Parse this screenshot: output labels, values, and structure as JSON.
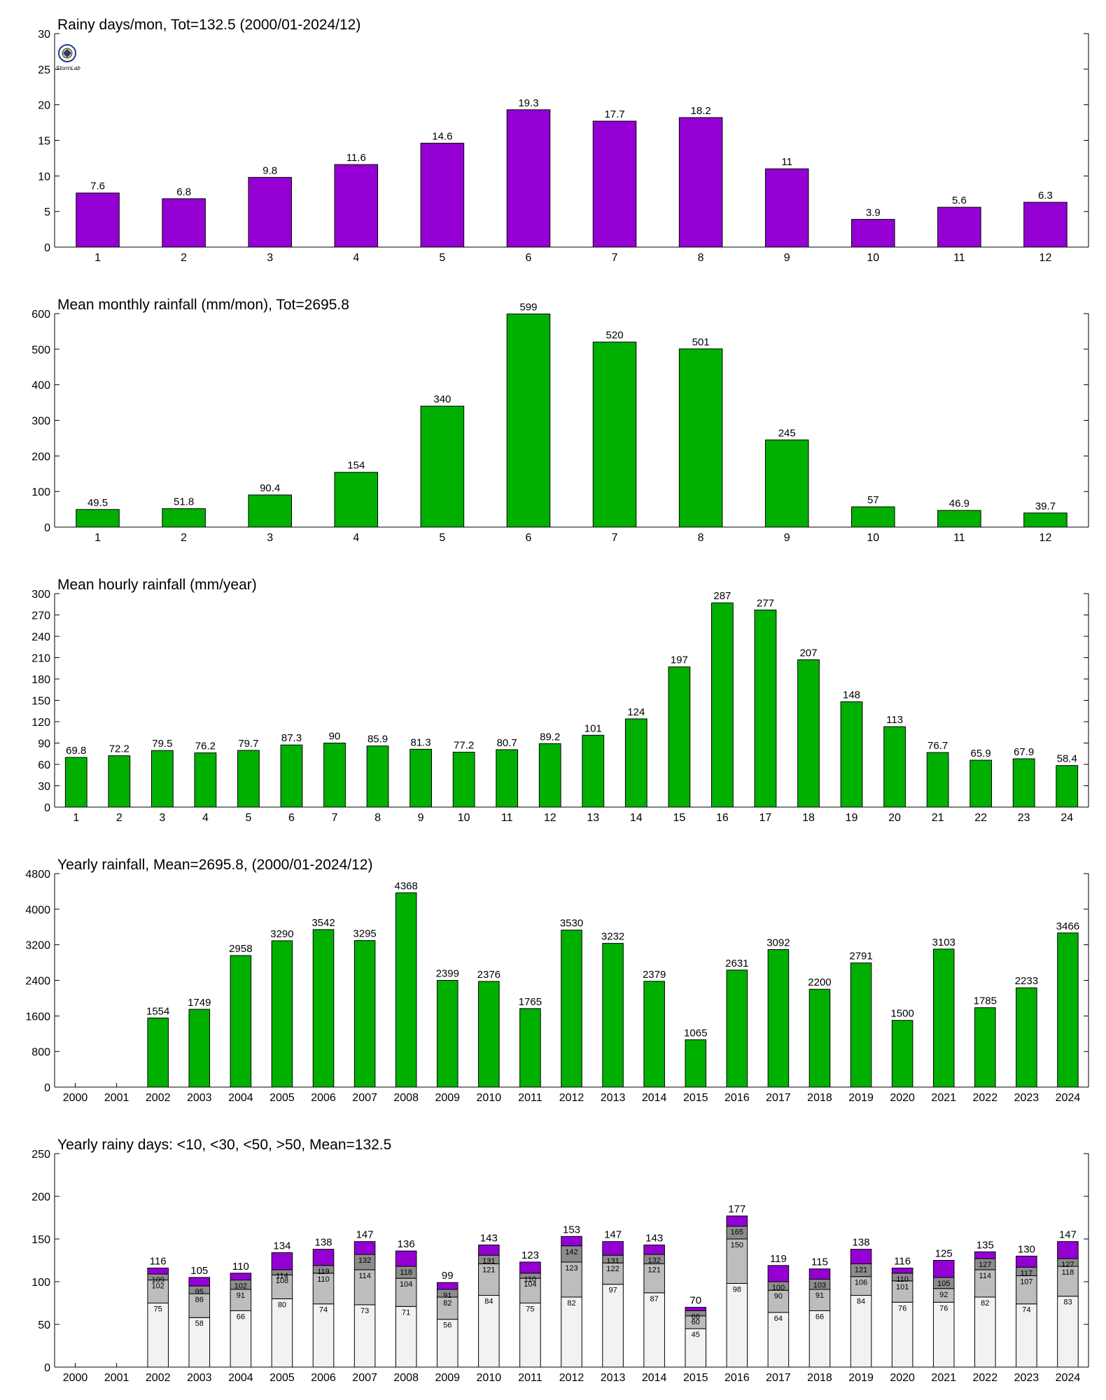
{
  "colors": {
    "purple": "#9400d3",
    "green": "#00b000",
    "seg_lt10": "#f2f2f2",
    "seg_lt30": "#bdbdbd",
    "seg_lt50": "#8c8c8c",
    "seg_gt50": "#9400d3"
  },
  "logo": {
    "icon": "weather-lab-logo-icon",
    "text": "StormLab"
  },
  "chart_data": [
    {
      "id": "rainy-days-monthly",
      "type": "bar",
      "title": "Rainy days/mon, Tot=132.5 (2000/01-2024/12)",
      "categories": [
        "1",
        "2",
        "3",
        "4",
        "5",
        "6",
        "7",
        "8",
        "9",
        "10",
        "11",
        "12"
      ],
      "values": [
        7.6,
        6.8,
        9.8,
        11.6,
        14.6,
        19.3,
        17.7,
        18.2,
        11,
        3.9,
        5.6,
        6.3
      ],
      "value_labels": [
        "7.6",
        "6.8",
        "9.8",
        "11.6",
        "14.6",
        "19.3",
        "17.7",
        "18.2",
        "11",
        "3.9",
        "5.6",
        "6.3"
      ],
      "ylim": [
        0,
        30
      ],
      "yticks": [
        0,
        5,
        10,
        15,
        20,
        25,
        30
      ],
      "color": "purple"
    },
    {
      "id": "mean-monthly-rainfall",
      "type": "bar",
      "title": "Mean monthly rainfall (mm/mon), Tot=2695.8",
      "categories": [
        "1",
        "2",
        "3",
        "4",
        "5",
        "6",
        "7",
        "8",
        "9",
        "10",
        "11",
        "12"
      ],
      "values": [
        49.5,
        51.8,
        90.4,
        154,
        340,
        599,
        520,
        501,
        245,
        57,
        46.9,
        39.7
      ],
      "value_labels": [
        "49.5",
        "51.8",
        "90.4",
        "154",
        "340",
        "599",
        "520",
        "501",
        "245",
        "57",
        "46.9",
        "39.7"
      ],
      "ylim": [
        0,
        600
      ],
      "yticks": [
        0,
        100,
        200,
        300,
        400,
        500,
        600
      ],
      "color": "green"
    },
    {
      "id": "mean-hourly-rainfall",
      "type": "bar",
      "title": "Mean hourly rainfall (mm/year)",
      "categories": [
        "1",
        "2",
        "3",
        "4",
        "5",
        "6",
        "7",
        "8",
        "9",
        "10",
        "11",
        "12",
        "13",
        "14",
        "15",
        "16",
        "17",
        "18",
        "19",
        "20",
        "21",
        "22",
        "23",
        "24"
      ],
      "values": [
        69.8,
        72.2,
        79.5,
        76.2,
        79.7,
        87.3,
        90,
        85.9,
        81.3,
        77.2,
        80.7,
        89.2,
        101,
        124,
        197,
        287,
        277,
        207,
        148,
        113,
        76.7,
        65.9,
        67.9,
        58.4
      ],
      "value_labels": [
        "69.8",
        "72.2",
        "79.5",
        "76.2",
        "79.7",
        "87.3",
        "90",
        "85.9",
        "81.3",
        "77.2",
        "80.7",
        "89.2",
        "101",
        "124",
        "197",
        "287",
        "277",
        "207",
        "148",
        "113",
        "76.7",
        "65.9",
        "67.9",
        "58.4"
      ],
      "ylim": [
        0,
        300
      ],
      "yticks": [
        0,
        30,
        60,
        90,
        120,
        150,
        180,
        210,
        240,
        270,
        300
      ],
      "color": "green"
    },
    {
      "id": "yearly-rainfall",
      "type": "bar",
      "title": "Yearly rainfall, Mean=2695.8, (2000/01-2024/12)",
      "categories": [
        "2000",
        "2001",
        "2002",
        "2003",
        "2004",
        "2005",
        "2006",
        "2007",
        "2008",
        "2009",
        "2010",
        "2011",
        "2012",
        "2013",
        "2014",
        "2015",
        "2016",
        "2017",
        "2018",
        "2019",
        "2020",
        "2021",
        "2022",
        "2023",
        "2024"
      ],
      "values": [
        null,
        null,
        1554,
        1749,
        2958,
        3290,
        3542,
        3295,
        4368,
        2399,
        2376,
        1765,
        3530,
        3232,
        2379,
        1065,
        2631,
        3092,
        2200,
        2791,
        1500,
        3103,
        1785,
        2233,
        3466
      ],
      "value_labels": [
        "",
        "",
        "1554",
        "1749",
        "2958",
        "3290",
        "3542",
        "3295",
        "4368",
        "2399",
        "2376",
        "1765",
        "3530",
        "3232",
        "2379",
        "1065",
        "2631",
        "3092",
        "2200",
        "2791",
        "1500",
        "3103",
        "1785",
        "2233",
        "3466"
      ],
      "ylim": [
        0,
        4800
      ],
      "yticks": [
        0,
        800,
        1600,
        2400,
        3200,
        4000,
        4800
      ],
      "color": "green"
    },
    {
      "id": "yearly-rainy-days",
      "type": "bar",
      "stacked": true,
      "title": "Yearly rainy days: <10, <30, <50, >50, Mean=132.5",
      "categories": [
        "2000",
        "2001",
        "2002",
        "2003",
        "2004",
        "2005",
        "2006",
        "2007",
        "2008",
        "2009",
        "2010",
        "2011",
        "2012",
        "2013",
        "2014",
        "2015",
        "2016",
        "2017",
        "2018",
        "2019",
        "2020",
        "2021",
        "2022",
        "2023",
        "2024"
      ],
      "cumulative": {
        "lt10": [
          null,
          null,
          75,
          58,
          66,
          80,
          74,
          73,
          71,
          56,
          84,
          75,
          82,
          97,
          87,
          45,
          98,
          64,
          66,
          84,
          76,
          76,
          82,
          74,
          83
        ],
        "lt30": [
          null,
          null,
          102,
          86,
          91,
          108,
          110,
          114,
          104,
          82,
          121,
          104,
          123,
          122,
          121,
          60,
          150,
          90,
          91,
          106,
          101,
          92,
          114,
          107,
          118
        ],
        "lt50": [
          null,
          null,
          109,
          95,
          102,
          114,
          119,
          132,
          118,
          91,
          131,
          110,
          142,
          131,
          132,
          66,
          165,
          100,
          103,
          121,
          110,
          105,
          127,
          117,
          127
        ],
        "total": [
          null,
          null,
          116,
          105,
          110,
          134,
          138,
          147,
          136,
          99,
          143,
          123,
          153,
          147,
          143,
          70,
          177,
          119,
          115,
          138,
          116,
          125,
          135,
          130,
          147
        ]
      },
      "labels": {
        "lt10": [
          "",
          "",
          "75",
          "58",
          "66",
          "80",
          "74",
          "73",
          "71",
          "56",
          "84",
          "75",
          "82",
          "97",
          "87",
          "45",
          "98",
          "64",
          "66",
          "84",
          "76",
          "76",
          "82",
          "74",
          "83"
        ],
        "lt30": [
          "",
          "",
          "102",
          "86",
          "91",
          "108",
          "110",
          "114",
          "104",
          "82",
          "121",
          "104",
          "123",
          "122",
          "121",
          "60",
          "150",
          "90",
          "91",
          "106",
          "101",
          "92",
          "114",
          "107",
          "118"
        ],
        "lt50": [
          "",
          "",
          "109",
          "95",
          "102",
          "114",
          "119",
          "132",
          "118",
          "91",
          "131",
          "110",
          "142",
          "131",
          "132",
          "66",
          "165",
          "100",
          "103",
          "121",
          "110",
          "105",
          "127",
          "117",
          "127"
        ],
        "total": [
          "",
          "",
          "116",
          "105",
          "110",
          "134",
          "138",
          "147",
          "136",
          "99",
          "143",
          "123",
          "153",
          "147",
          "143",
          "70",
          "177",
          "119",
          "115",
          "138",
          "116",
          "125",
          "135",
          "130",
          "147"
        ]
      },
      "ylim": [
        0,
        250
      ],
      "yticks": [
        0,
        50,
        100,
        150,
        200,
        250
      ]
    }
  ]
}
